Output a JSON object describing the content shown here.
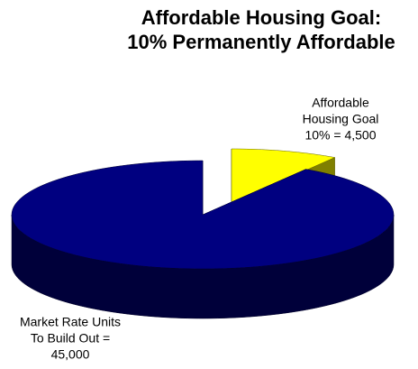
{
  "chart_data": {
    "type": "pie3d",
    "title": [
      "Affordable Housing Goal:",
      "10% Permanently Affordable"
    ],
    "categories": [
      "Affordable Housing Goal",
      "Market Rate Units To Build Out"
    ],
    "values": [
      4500,
      45000
    ],
    "value_labels": [
      [
        "Affordable",
        "Housing Goal",
        "10% = 4,500"
      ],
      [
        "Market Rate Units",
        "To Build Out =",
        "45,000"
      ]
    ],
    "colors": [
      "#ffff00",
      "#000080"
    ]
  }
}
